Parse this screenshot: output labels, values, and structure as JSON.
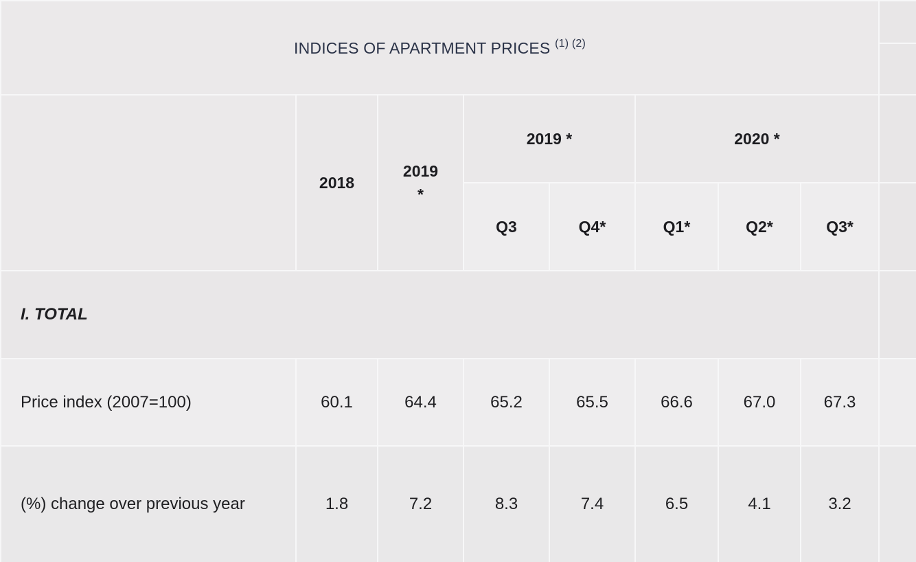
{
  "title": {
    "text": "INDICES OF APARTMENT PRICES",
    "notes": "(1) (2)"
  },
  "header": {
    "col_2018": "2018",
    "col_2019": "2019",
    "col_2019_mark": "*",
    "group_2019": "2019 *",
    "group_2020": "2020 *",
    "quarters": [
      "Q3",
      "Q4*",
      "Q1*",
      "Q2*",
      "Q3*"
    ]
  },
  "section": {
    "label": "I. TOTAL"
  },
  "rows": [
    {
      "label": "Price index (2007=100)",
      "values": [
        "60.1",
        "64.4",
        "65.2",
        "65.5",
        "66.6",
        "67.0",
        "67.3"
      ]
    },
    {
      "label": "(%) change over previous year",
      "values": [
        "1.8",
        "7.2",
        "8.3",
        "7.4",
        "6.5",
        "4.1",
        "3.2"
      ]
    }
  ]
}
